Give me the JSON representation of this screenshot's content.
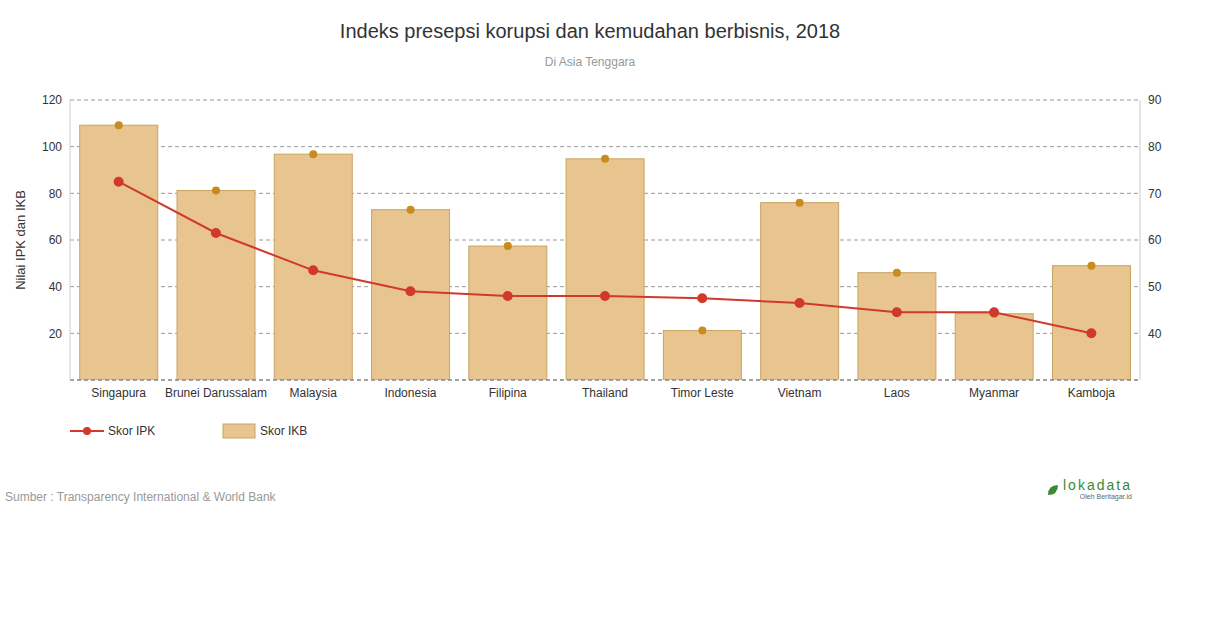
{
  "chart_data": {
    "type": "bar",
    "title": "Indeks presepsi korupsi dan kemudahan berbisnis, 2018",
    "subtitle": "Di Asia Tenggara",
    "y_label": "Nilai IPK dan IKB",
    "categories": [
      "Singapura",
      "Brunei Darussalam",
      "Malaysia",
      "Indonesia",
      "Filipina",
      "Thailand",
      "Timor Leste",
      "Vietnam",
      "Laos",
      "Myanmar",
      "Kamboja"
    ],
    "series": [
      {
        "name": "Skor IPK",
        "type": "line",
        "color": "#d0392b",
        "marker": "circle",
        "values": [
          85,
          63,
          47,
          38,
          36,
          36,
          35,
          33,
          29,
          29,
          20
        ]
      },
      {
        "name": "Skor IKB",
        "type": "bar",
        "axis": "y2",
        "color": "#e8c48e",
        "marker": "circle",
        "values": [
          84.6,
          70.6,
          78.4,
          66.5,
          58.7,
          77.4,
          40.6,
          68.0,
          53.0,
          44.2,
          54.5
        ]
      }
    ],
    "ylim": [
      0,
      120
    ],
    "yticks": [
      20,
      40,
      60,
      80,
      100,
      120
    ],
    "y2lim": [
      30,
      90
    ],
    "y2ticks": [
      40,
      50,
      60,
      70,
      80,
      90
    ],
    "grid": true,
    "legend": "bottom left",
    "source": "Sumber : Transparency International & World Bank",
    "logo": "lokadata",
    "logo_sub": "Oleh Beritagar.id"
  }
}
